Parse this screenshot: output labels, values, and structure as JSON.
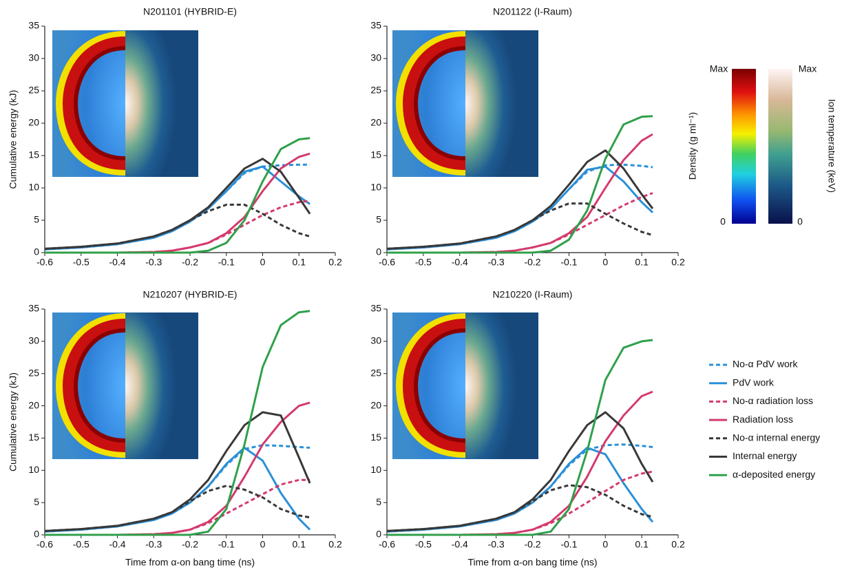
{
  "chart_data": [
    {
      "type": "line",
      "title": "N201101 (HYBRID-E)",
      "ylabel": "Cumulative energy (kJ)",
      "x": [
        -0.6,
        -0.5,
        -0.4,
        -0.3,
        -0.25,
        -0.2,
        -0.15,
        -0.1,
        -0.05,
        0,
        0.05,
        0.1,
        0.13
      ],
      "xlim": [
        -0.6,
        0.2
      ],
      "xticks": [
        -0.6,
        -0.5,
        -0.4,
        -0.3,
        -0.2,
        -0.1,
        0,
        0.1,
        0.2
      ],
      "ylim": [
        0,
        35
      ],
      "yticks": [
        0,
        5,
        10,
        15,
        20,
        25,
        30,
        35
      ],
      "series": [
        {
          "name": "No-α PdV work",
          "color": "#2b8fd8",
          "style": "dashed",
          "values": [
            0.5,
            0.8,
            1.3,
            2.3,
            3.3,
            4.8,
            6.8,
            9.5,
            12.3,
            13.3,
            13.5,
            13.6,
            13.6
          ]
        },
        {
          "name": "PdV work",
          "color": "#2b8fd8",
          "style": "solid",
          "values": [
            0.5,
            0.8,
            1.3,
            2.3,
            3.3,
            4.8,
            6.8,
            9.5,
            12.5,
            13.3,
            11,
            8.7,
            7.5
          ]
        },
        {
          "name": "No-α radiation loss",
          "color": "#d43a6c",
          "style": "dashed",
          "values": [
            0,
            0,
            0,
            0.1,
            0.3,
            0.8,
            1.5,
            2.8,
            4.3,
            5.8,
            7,
            7.8,
            8
          ]
        },
        {
          "name": "Radiation loss",
          "color": "#d43a6c",
          "style": "solid",
          "values": [
            0,
            0,
            0,
            0.1,
            0.3,
            0.8,
            1.5,
            3,
            5.5,
            9.5,
            13,
            14.8,
            15.3
          ]
        },
        {
          "name": "No-α internal energy",
          "color": "#383838",
          "style": "dashed",
          "values": [
            0.6,
            0.9,
            1.4,
            2.5,
            3.5,
            5,
            6.4,
            7.4,
            7.4,
            6,
            4.3,
            3,
            2.5
          ]
        },
        {
          "name": "Internal energy",
          "color": "#383838",
          "style": "solid",
          "values": [
            0.6,
            0.9,
            1.4,
            2.5,
            3.5,
            5,
            7,
            10,
            13,
            14.5,
            12.5,
            8.5,
            6
          ]
        },
        {
          "name": "α-deposited energy",
          "color": "#2fa04a",
          "style": "solid",
          "values": [
            0,
            0,
            0,
            0,
            0,
            0,
            0.3,
            1.5,
            5,
            11,
            16,
            17.5,
            17.7
          ]
        }
      ]
    },
    {
      "type": "line",
      "title": "N201122 (I-Raum)",
      "x": [
        -0.6,
        -0.5,
        -0.4,
        -0.3,
        -0.25,
        -0.2,
        -0.15,
        -0.1,
        -0.05,
        0,
        0.05,
        0.1,
        0.13
      ],
      "xlim": [
        -0.6,
        0.2
      ],
      "xticks": [
        -0.6,
        -0.5,
        -0.4,
        -0.3,
        -0.2,
        -0.1,
        0,
        0.1,
        0.2
      ],
      "ylim": [
        0,
        35
      ],
      "yticks": [
        0,
        5,
        10,
        15,
        20,
        25,
        30,
        35
      ],
      "series": [
        {
          "color": "#2b8fd8",
          "style": "dashed",
          "values": [
            0.5,
            0.8,
            1.3,
            2.3,
            3.3,
            4.8,
            6.8,
            9.8,
            12.5,
            13.5,
            13.6,
            13.4,
            13.2
          ]
        },
        {
          "color": "#2b8fd8",
          "style": "solid",
          "values": [
            0.5,
            0.8,
            1.3,
            2.3,
            3.3,
            4.8,
            6.8,
            9.8,
            12.8,
            13.3,
            11,
            7.8,
            6.2
          ]
        },
        {
          "color": "#d43a6c",
          "style": "dashed",
          "values": [
            0,
            0,
            0,
            0.1,
            0.3,
            0.8,
            1.5,
            2.8,
            4.3,
            5.8,
            7.3,
            8.6,
            9.2
          ]
        },
        {
          "color": "#d43a6c",
          "style": "solid",
          "values": [
            0,
            0,
            0,
            0.1,
            0.3,
            0.8,
            1.5,
            3,
            5.5,
            10,
            14.3,
            17.3,
            18.3
          ]
        },
        {
          "color": "#383838",
          "style": "dashed",
          "values": [
            0.6,
            0.9,
            1.4,
            2.5,
            3.5,
            5,
            6.5,
            7.6,
            7.6,
            6,
            4.5,
            3.2,
            2.7
          ]
        },
        {
          "color": "#383838",
          "style": "solid",
          "values": [
            0.6,
            0.9,
            1.4,
            2.5,
            3.5,
            5,
            7.2,
            10.5,
            14,
            15.8,
            13,
            9,
            6.8
          ]
        },
        {
          "color": "#2fa04a",
          "style": "solid",
          "values": [
            0,
            0,
            0,
            0,
            0,
            0,
            0.3,
            2,
            6.5,
            14.5,
            19.8,
            21,
            21.1
          ]
        }
      ]
    },
    {
      "type": "line",
      "title": "N210207 (HYBRID-E)",
      "ylabel": "Cumulative energy (kJ)",
      "xlabel": "Time from α-on bang time (ns)",
      "x": [
        -0.6,
        -0.5,
        -0.4,
        -0.3,
        -0.25,
        -0.2,
        -0.15,
        -0.1,
        -0.05,
        0,
        0.05,
        0.1,
        0.13
      ],
      "xlim": [
        -0.6,
        0.2
      ],
      "xticks": [
        -0.6,
        -0.5,
        -0.4,
        -0.3,
        -0.2,
        -0.1,
        0,
        0.1,
        0.2
      ],
      "ylim": [
        0,
        35
      ],
      "yticks": [
        0,
        5,
        10,
        15,
        20,
        25,
        30,
        35
      ],
      "series": [
        {
          "color": "#2b8fd8",
          "style": "dashed",
          "values": [
            0.5,
            0.8,
            1.3,
            2.3,
            3.3,
            5,
            7.5,
            10.8,
            13.3,
            13.9,
            13.8,
            13.6,
            13.5
          ]
        },
        {
          "color": "#2b8fd8",
          "style": "solid",
          "values": [
            0.5,
            0.8,
            1.3,
            2.3,
            3.3,
            5,
            7.5,
            11,
            13.5,
            11.5,
            6.5,
            2.5,
            0.8
          ]
        },
        {
          "color": "#d43a6c",
          "style": "dashed",
          "values": [
            0,
            0,
            0,
            0.1,
            0.3,
            0.8,
            1.8,
            3.3,
            4.8,
            6.3,
            7.8,
            8.5,
            8.5
          ]
        },
        {
          "color": "#d43a6c",
          "style": "solid",
          "values": [
            0,
            0,
            0,
            0.1,
            0.3,
            0.8,
            2,
            4.5,
            9,
            14,
            17.5,
            20,
            20.5
          ]
        },
        {
          "color": "#383838",
          "style": "dashed",
          "values": [
            0.6,
            0.9,
            1.4,
            2.5,
            3.5,
            5.2,
            6.8,
            7.6,
            7,
            5.8,
            4,
            3,
            2.7
          ]
        },
        {
          "color": "#383838",
          "style": "solid",
          "values": [
            0.6,
            0.9,
            1.4,
            2.5,
            3.5,
            5.5,
            8.5,
            13,
            17,
            19,
            18.5,
            12,
            8
          ]
        },
        {
          "color": "#2fa04a",
          "style": "solid",
          "values": [
            0,
            0,
            0,
            0,
            0,
            0,
            0.5,
            4,
            14,
            26,
            32.5,
            34.5,
            34.7
          ]
        }
      ]
    },
    {
      "type": "line",
      "title": "N210220 (I-Raum)",
      "xlabel": "Time from α-on bang time (ns)",
      "x": [
        -0.6,
        -0.5,
        -0.4,
        -0.3,
        -0.25,
        -0.2,
        -0.15,
        -0.1,
        -0.05,
        0,
        0.05,
        0.1,
        0.13
      ],
      "xlim": [
        -0.6,
        0.2
      ],
      "xticks": [
        -0.6,
        -0.5,
        -0.4,
        -0.3,
        -0.2,
        -0.1,
        0,
        0.1,
        0.2
      ],
      "ylim": [
        0,
        35
      ],
      "yticks": [
        0,
        5,
        10,
        15,
        20,
        25,
        30,
        35
      ],
      "series": [
        {
          "color": "#2b8fd8",
          "style": "dashed",
          "values": [
            0.5,
            0.8,
            1.3,
            2.3,
            3.3,
            5,
            7.5,
            10.8,
            13.2,
            13.9,
            14,
            13.8,
            13.6
          ]
        },
        {
          "color": "#2b8fd8",
          "style": "solid",
          "values": [
            0.5,
            0.8,
            1.3,
            2.3,
            3.3,
            5,
            7.5,
            11,
            13.5,
            12.5,
            8,
            4,
            2
          ]
        },
        {
          "color": "#d43a6c",
          "style": "dashed",
          "values": [
            0,
            0,
            0,
            0.1,
            0.3,
            0.8,
            1.8,
            3.3,
            5,
            6.8,
            8.5,
            9.5,
            9.8
          ]
        },
        {
          "color": "#d43a6c",
          "style": "solid",
          "values": [
            0,
            0,
            0,
            0.1,
            0.3,
            0.8,
            2,
            4.5,
            9,
            14.5,
            18.5,
            21.5,
            22.2
          ]
        },
        {
          "color": "#383838",
          "style": "dashed",
          "values": [
            0.6,
            0.9,
            1.4,
            2.5,
            3.5,
            5.2,
            6.9,
            7.7,
            7.4,
            6.2,
            4.5,
            3.2,
            2.8
          ]
        },
        {
          "color": "#383838",
          "style": "solid",
          "values": [
            0.6,
            0.9,
            1.4,
            2.5,
            3.5,
            5.5,
            8.5,
            13,
            17,
            19,
            16.5,
            11,
            8.2
          ]
        },
        {
          "color": "#2fa04a",
          "style": "solid",
          "values": [
            0,
            0,
            0,
            0,
            0,
            0,
            0.5,
            4,
            13,
            24,
            29,
            30,
            30.2
          ]
        }
      ]
    }
  ],
  "colorbars": [
    {
      "label": "Density (g ml⁻¹)",
      "max_label": "Max",
      "min_label": "0"
    },
    {
      "label": "Ion temperature (keV)",
      "max_label": "Max",
      "min_label": "0"
    }
  ]
}
